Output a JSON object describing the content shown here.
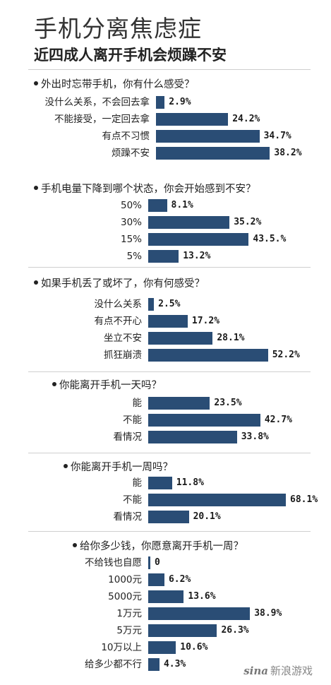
{
  "header": {
    "title": "手机分离焦虑症",
    "subtitle": "近四成人离开手机会烦躁不安"
  },
  "watermark": {
    "logo": "sina",
    "text": "新浪游戏"
  },
  "colors": {
    "bar": "#2a4d75"
  },
  "chart_data": [
    {
      "type": "bar",
      "orientation": "horizontal",
      "title": "外出时忘带手机，你有什么感受？",
      "categories": [
        "没什么关系，不会回去拿",
        "不能接受，一定回去拿",
        "有点不习惯",
        "烦躁不安"
      ],
      "values": [
        2.9,
        24.2,
        34.7,
        38.2
      ],
      "labels": [
        "2.9%",
        "24.2%",
        "34.7%",
        "38.2%"
      ]
    },
    {
      "type": "bar",
      "orientation": "horizontal",
      "title": "手机电量下降到哪个状态，你会开始感到不安？",
      "categories": [
        "50%",
        "30%",
        "15%",
        "5%"
      ],
      "values": [
        8.1,
        35.2,
        43.5,
        13.2
      ],
      "labels": [
        "8.1%",
        "35.2%",
        "43.5.%",
        "13.2%"
      ]
    },
    {
      "type": "bar",
      "orientation": "horizontal",
      "title": "如果手机丢了或坏了，你有何感受？",
      "categories": [
        "没什么关系",
        "有点不开心",
        "坐立不安",
        "抓狂崩溃"
      ],
      "values": [
        2.5,
        17.2,
        28.1,
        52.2
      ],
      "labels": [
        "2.5%",
        "17.2%",
        "28.1%",
        "52.2%"
      ]
    },
    {
      "type": "bar",
      "orientation": "horizontal",
      "title": "你能离开手机一天吗？",
      "categories": [
        "能",
        "不能",
        "看情况"
      ],
      "values": [
        23.5,
        42.7,
        33.8
      ],
      "labels": [
        "23.5%",
        "42.7%",
        "33.8%"
      ]
    },
    {
      "type": "bar",
      "orientation": "horizontal",
      "title": "你能离开手机一周吗？",
      "categories": [
        "能",
        "不能",
        "看情况"
      ],
      "values": [
        11.8,
        68.1,
        20.1
      ],
      "labels": [
        "11.8%",
        "68.1%",
        "20.1%"
      ]
    },
    {
      "type": "bar",
      "orientation": "horizontal",
      "title": "给你多少钱，你愿意离开手机一周？",
      "categories": [
        "不给钱也自愿",
        "1000元",
        "5000元",
        "1万元",
        "5万元",
        "10万以上",
        "给多少都不行"
      ],
      "values": [
        0,
        6.2,
        13.6,
        38.9,
        26.3,
        10.6,
        4.3
      ],
      "labels": [
        "0",
        "6.2%",
        "13.6%",
        "38.9%",
        "26.3%",
        "10.6%",
        "4.3%"
      ]
    }
  ]
}
